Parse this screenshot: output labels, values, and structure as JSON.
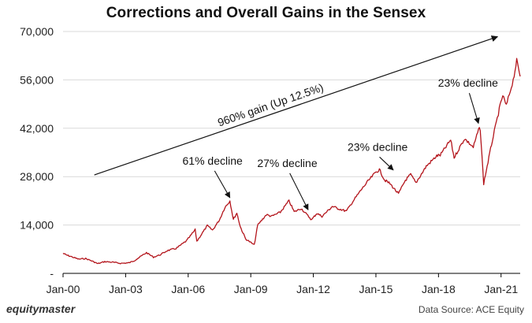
{
  "chart_data": {
    "type": "line",
    "title": "Corrections and Overall Gains in the Sensex",
    "xlabel": "",
    "ylabel": "",
    "ylim": [
      0,
      70000
    ],
    "yticks": [
      0,
      14000,
      28000,
      42000,
      56000,
      70000
    ],
    "ytick_labels": [
      "-",
      "14,000",
      "28,000",
      "42,000",
      "56,000",
      "70,000"
    ],
    "xlim": [
      "2000-01",
      "2021-12"
    ],
    "xticks": [
      "2000-01",
      "2003-01",
      "2006-01",
      "2009-01",
      "2012-01",
      "2015-01",
      "2018-01",
      "2021-01"
    ],
    "xtick_labels": [
      "Jan-00",
      "Jan-03",
      "Jan-06",
      "Jan-09",
      "Jan-12",
      "Jan-15",
      "Jan-18",
      "Jan-21"
    ],
    "grid": "horizontal",
    "series": [
      {
        "color": "#b3141b",
        "points": [
          [
            "2000-01",
            5800
          ],
          [
            "2000-03",
            5300
          ],
          [
            "2000-06",
            4800
          ],
          [
            "2000-10",
            4100
          ],
          [
            "2001-02",
            4300
          ],
          [
            "2001-06",
            3500
          ],
          [
            "2001-09",
            2800
          ],
          [
            "2002-01",
            3400
          ],
          [
            "2002-06",
            3200
          ],
          [
            "2002-10",
            2900
          ],
          [
            "2003-03",
            3050
          ],
          [
            "2003-06",
            3700
          ],
          [
            "2003-10",
            5000
          ],
          [
            "2004-01",
            6000
          ],
          [
            "2004-05",
            4700
          ],
          [
            "2004-09",
            5400
          ],
          [
            "2005-01",
            6600
          ],
          [
            "2005-06",
            7200
          ],
          [
            "2005-12",
            9400
          ],
          [
            "2006-05",
            12600
          ],
          [
            "2006-06",
            9300
          ],
          [
            "2006-12",
            13800
          ],
          [
            "2007-03",
            12500
          ],
          [
            "2007-07",
            15500
          ],
          [
            "2007-10",
            19000
          ],
          [
            "2008-01",
            21000
          ],
          [
            "2008-03",
            15600
          ],
          [
            "2008-05",
            17500
          ],
          [
            "2008-07",
            13500
          ],
          [
            "2008-10",
            10000
          ],
          [
            "2009-03",
            8200
          ],
          [
            "2009-05",
            14000
          ],
          [
            "2009-10",
            17000
          ],
          [
            "2010-01",
            16500
          ],
          [
            "2010-06",
            17700
          ],
          [
            "2010-11",
            21000
          ],
          [
            "2011-02",
            17800
          ],
          [
            "2011-06",
            18800
          ],
          [
            "2011-12",
            15500
          ],
          [
            "2012-03",
            17400
          ],
          [
            "2012-06",
            16500
          ],
          [
            "2012-12",
            19400
          ],
          [
            "2013-03",
            18800
          ],
          [
            "2013-08",
            18000
          ],
          [
            "2013-12",
            21000
          ],
          [
            "2014-05",
            24500
          ],
          [
            "2014-09",
            27000
          ],
          [
            "2015-01",
            29300
          ],
          [
            "2015-03",
            30000
          ],
          [
            "2015-06",
            27000
          ],
          [
            "2015-09",
            26000
          ],
          [
            "2016-02",
            23000
          ],
          [
            "2016-06",
            27000
          ],
          [
            "2016-09",
            28600
          ],
          [
            "2016-12",
            26200
          ],
          [
            "2017-06",
            31000
          ],
          [
            "2017-12",
            34000
          ],
          [
            "2018-02",
            34200
          ],
          [
            "2018-08",
            38600
          ],
          [
            "2018-10",
            33500
          ],
          [
            "2019-04",
            39000
          ],
          [
            "2019-09",
            36500
          ],
          [
            "2019-12",
            41500
          ],
          [
            "2020-01",
            41900
          ],
          [
            "2020-03",
            26000
          ],
          [
            "2020-05",
            31000
          ],
          [
            "2020-08",
            38500
          ],
          [
            "2020-12",
            47500
          ],
          [
            "2021-02",
            51500
          ],
          [
            "2021-04",
            48500
          ],
          [
            "2021-08",
            56000
          ],
          [
            "2021-10",
            61500
          ],
          [
            "2021-12",
            57000
          ]
        ]
      }
    ],
    "annotations": [
      {
        "text": "960% gain (Up 12.5%)",
        "arrow_from": [
          "2001-07",
          28500
        ],
        "arrow_to": [
          "2020-11",
          68500
        ]
      },
      {
        "text": "61% decline",
        "label_at": [
          "2007-03",
          31500
        ],
        "arrow_to": [
          "2008-01",
          21000
        ]
      },
      {
        "text": "27% decline",
        "label_at": [
          "2010-10",
          30800
        ],
        "arrow_to": [
          "2011-10",
          17500
        ]
      },
      {
        "text": "23% decline",
        "label_at": [
          "2015-02",
          35500
        ],
        "arrow_to": [
          "2015-11",
          29000
        ]
      },
      {
        "text": "23% decline",
        "label_at": [
          "2019-06",
          54000
        ],
        "arrow_to": [
          "2019-12",
          42500
        ]
      }
    ]
  },
  "footer": {
    "brand": "equitymaster",
    "source": "Data Source: ACE Equity"
  }
}
